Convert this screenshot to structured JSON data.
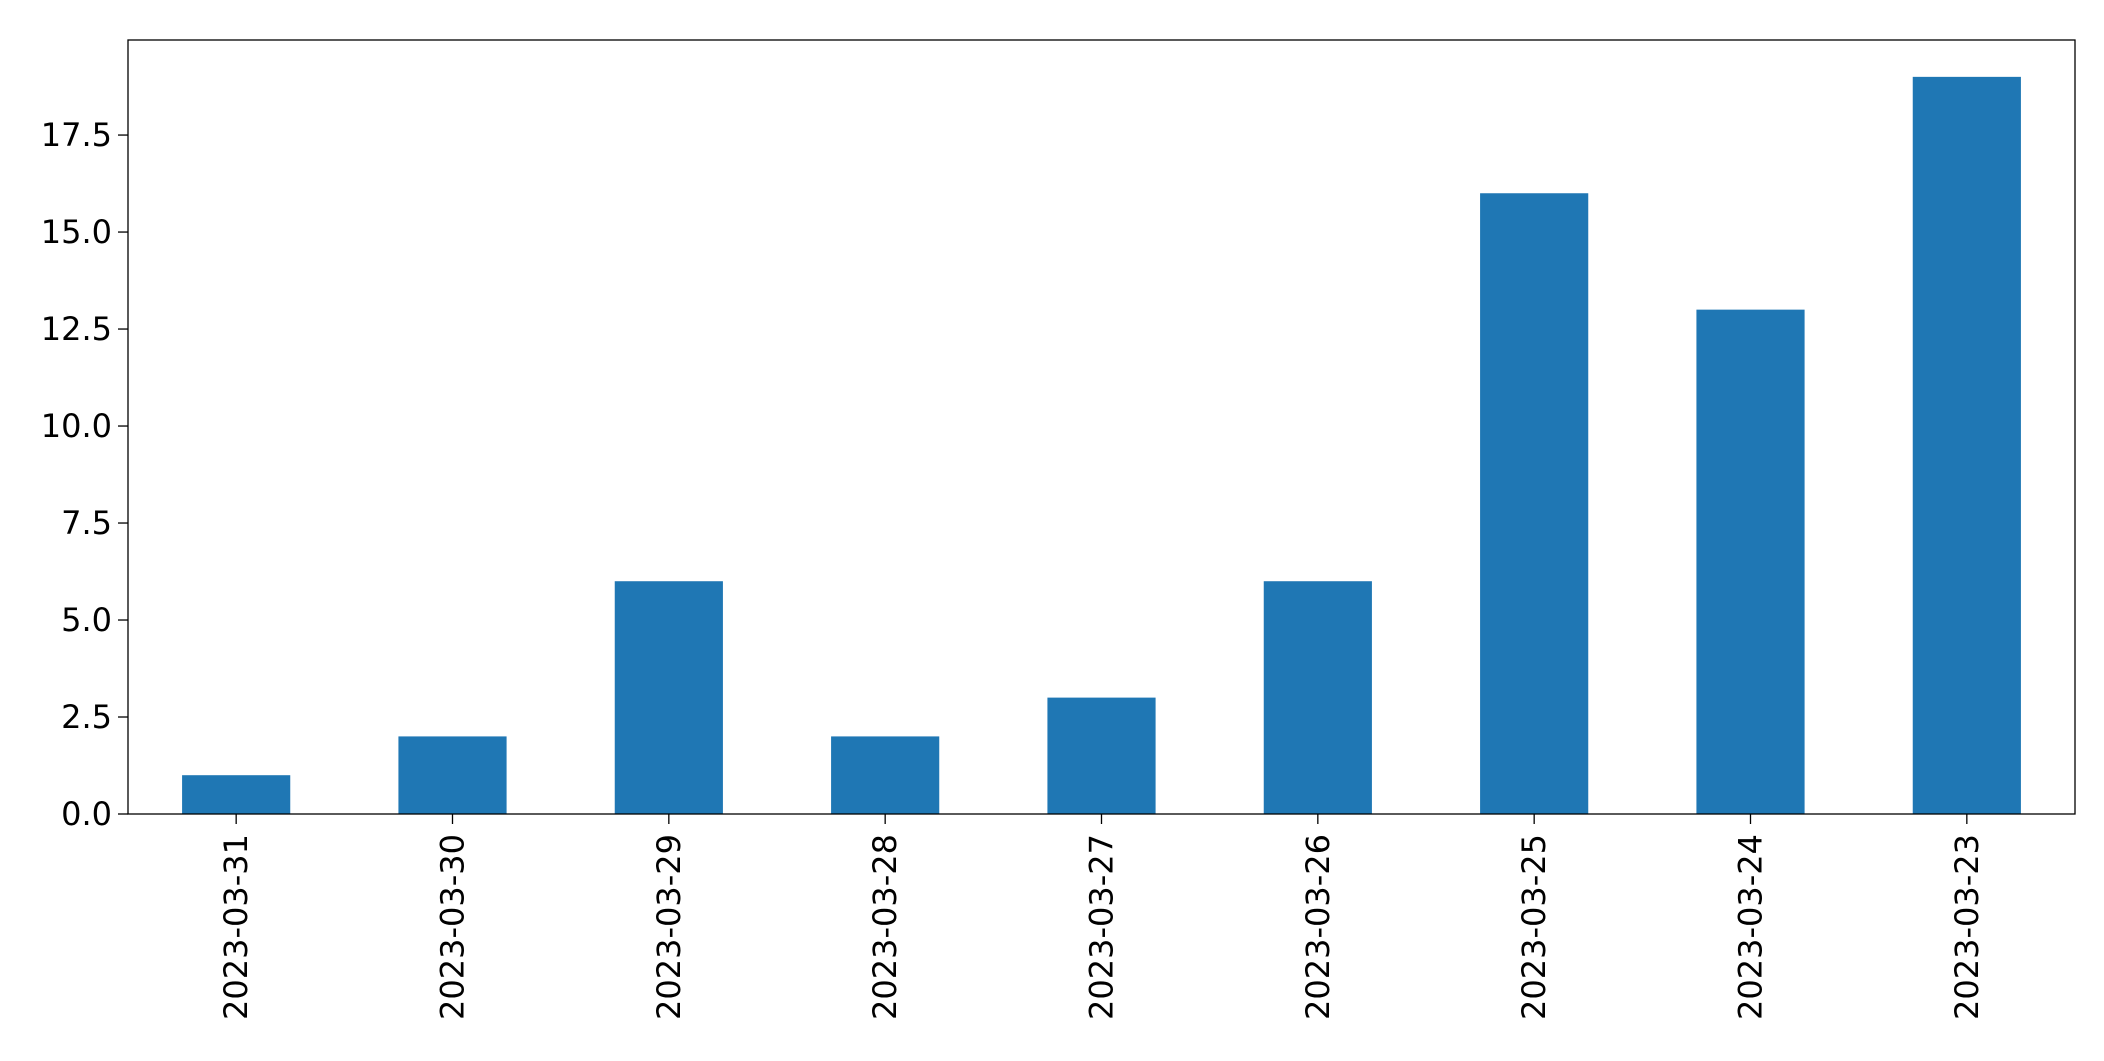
{
  "chart_data": {
    "type": "bar",
    "title": "",
    "xlabel": "",
    "ylabel": "",
    "categories": [
      "2023-03-31",
      "2023-03-30",
      "2023-03-29",
      "2023-03-28",
      "2023-03-27",
      "2023-03-26",
      "2023-03-25",
      "2023-03-24",
      "2023-03-23"
    ],
    "values": [
      1,
      2,
      6,
      2,
      3,
      6,
      16,
      13,
      19
    ],
    "ylim": [
      0,
      19.95
    ],
    "yticks": [
      0.0,
      2.5,
      5.0,
      7.5,
      10.0,
      12.5,
      15.0,
      17.5
    ],
    "ytick_labels": [
      "0.0",
      "2.5",
      "5.0",
      "7.5",
      "10.0",
      "12.5",
      "15.0",
      "17.5"
    ],
    "grid": false,
    "legend": "none",
    "bar_color": "#1f77b4"
  }
}
